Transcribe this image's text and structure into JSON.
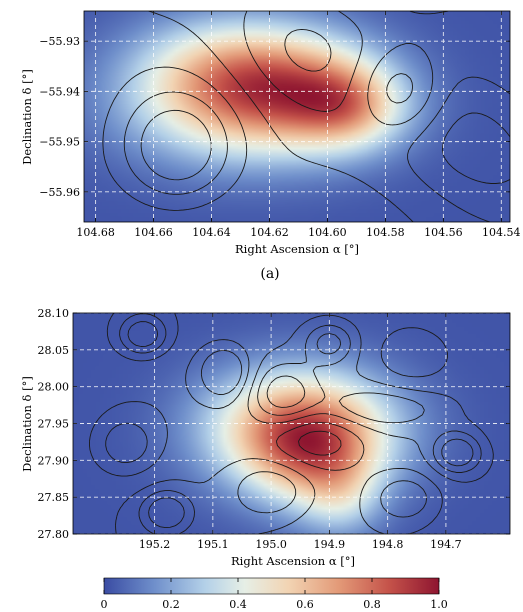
{
  "chart_data": [
    {
      "type": "heatmap",
      "xlabel": "Right Ascension α [°]",
      "ylabel": "Declination δ [°]",
      "x_reversed": true,
      "xlim": [
        104.684,
        104.537
      ],
      "ylim": [
        -55.966,
        -55.924
      ],
      "xticks": [
        104.68,
        104.66,
        104.64,
        104.62,
        104.6,
        104.58,
        104.56,
        104.54
      ],
      "xtick_labels": [
        "104.68",
        "104.66",
        "104.64",
        "104.62",
        "104.60",
        "104.58",
        "104.56",
        "104.54"
      ],
      "yticks": [
        -55.93,
        -55.94,
        -55.95,
        -55.96
      ],
      "ytick_labels": [
        "−55.93",
        "−55.94",
        "−55.95",
        "−55.96"
      ],
      "grid": true,
      "caption": "(a)",
      "heat_blobs": [
        {
          "x": 104.627,
          "y": -55.942,
          "sx": 0.028,
          "sy": 0.0085,
          "amp": 1.0
        },
        {
          "x": 104.612,
          "y": -55.937,
          "sx": 0.02,
          "sy": 0.0075,
          "amp": 0.45
        },
        {
          "x": 104.593,
          "y": -55.943,
          "sx": 0.014,
          "sy": 0.006,
          "amp": 0.7
        },
        {
          "x": 104.64,
          "y": -55.934,
          "sx": 0.02,
          "sy": 0.007,
          "amp": 0.35
        }
      ],
      "contour_features": [
        {
          "x": 104.652,
          "y": -55.952,
          "sx": 0.014,
          "sy": 0.008,
          "amp": -1.0
        },
        {
          "x": 104.575,
          "y": -55.94,
          "sx": 0.01,
          "sy": 0.006,
          "amp": -0.7
        },
        {
          "x": 104.548,
          "y": -55.95,
          "sx": 0.025,
          "sy": 0.012,
          "amp": 0.6
        },
        {
          "x": 104.61,
          "y": -55.93,
          "sx": 0.02,
          "sy": 0.01,
          "amp": 0.5
        }
      ],
      "contour_levels": [
        -0.7,
        -0.45,
        -0.2,
        0.05,
        0.3,
        0.5
      ]
    },
    {
      "type": "heatmap",
      "xlabel": "Right Ascension α [°]",
      "ylabel": "Declination δ [°]",
      "x_reversed": true,
      "xlim": [
        195.34,
        194.59
      ],
      "ylim": [
        27.8,
        28.1
      ],
      "xticks": [
        195.2,
        195.1,
        195.0,
        194.9,
        194.8,
        194.7
      ],
      "xtick_labels": [
        "195.2",
        "195.1",
        "195.0",
        "194.9",
        "194.8",
        "194.7"
      ],
      "yticks": [
        28.1,
        28.05,
        28.0,
        27.95,
        27.9,
        27.85,
        27.8
      ],
      "ytick_labels": [
        "28.10",
        "28.05",
        "28.00",
        "27.95",
        "27.90",
        "27.85",
        "27.80"
      ],
      "grid": true,
      "heat_blobs": [
        {
          "x": 194.95,
          "y": 27.945,
          "sx": 0.11,
          "sy": 0.055,
          "amp": 1.0
        },
        {
          "x": 194.93,
          "y": 27.9,
          "sx": 0.08,
          "sy": 0.05,
          "amp": 0.45
        },
        {
          "x": 194.88,
          "y": 27.85,
          "sx": 0.05,
          "sy": 0.04,
          "amp": 0.3
        }
      ],
      "contour_features": [
        {
          "x": 195.22,
          "y": 28.07,
          "sx": 0.03,
          "sy": 0.02,
          "amp": 0.9
        },
        {
          "x": 195.08,
          "y": 28.02,
          "sx": 0.03,
          "sy": 0.025,
          "amp": -0.8
        },
        {
          "x": 194.98,
          "y": 27.99,
          "sx": 0.04,
          "sy": 0.03,
          "amp": 0.8
        },
        {
          "x": 194.9,
          "y": 28.06,
          "sx": 0.03,
          "sy": 0.02,
          "amp": 0.7
        },
        {
          "x": 194.92,
          "y": 27.93,
          "sx": 0.06,
          "sy": 0.03,
          "amp": -0.7
        },
        {
          "x": 194.68,
          "y": 27.91,
          "sx": 0.03,
          "sy": 0.02,
          "amp": 0.9
        },
        {
          "x": 195.25,
          "y": 27.92,
          "sx": 0.04,
          "sy": 0.03,
          "amp": -0.6
        },
        {
          "x": 195.18,
          "y": 27.83,
          "sx": 0.03,
          "sy": 0.02,
          "amp": 0.8
        },
        {
          "x": 194.82,
          "y": 27.97,
          "sx": 0.08,
          "sy": 0.02,
          "amp": 0.5
        },
        {
          "x": 195.0,
          "y": 27.86,
          "sx": 0.05,
          "sy": 0.03,
          "amp": 0.6
        },
        {
          "x": 194.76,
          "y": 28.04,
          "sx": 0.05,
          "sy": 0.03,
          "amp": -0.5
        },
        {
          "x": 194.77,
          "y": 27.85,
          "sx": 0.04,
          "sy": 0.025,
          "amp": -0.6
        }
      ],
      "contour_levels": [
        -0.45,
        -0.2,
        0.1,
        0.35,
        0.6
      ]
    }
  ],
  "colorbar": {
    "vmin": 0,
    "vmax": 1.0,
    "ticks": [
      0,
      0.2,
      0.4,
      0.6,
      0.8,
      1.0
    ],
    "tick_labels": [
      "0",
      "0.2",
      "0.4",
      "0.6",
      "0.8",
      "1.0"
    ],
    "colormap": "RdYlBu_r-like",
    "stops": [
      [
        0.0,
        "#3a4ca3"
      ],
      [
        0.15,
        "#6f8fcb"
      ],
      [
        0.3,
        "#b3d0e8"
      ],
      [
        0.42,
        "#e6efe6"
      ],
      [
        0.55,
        "#f2d4b3"
      ],
      [
        0.7,
        "#e39a78"
      ],
      [
        0.85,
        "#c5534a"
      ],
      [
        1.0,
        "#8e1530"
      ]
    ]
  }
}
